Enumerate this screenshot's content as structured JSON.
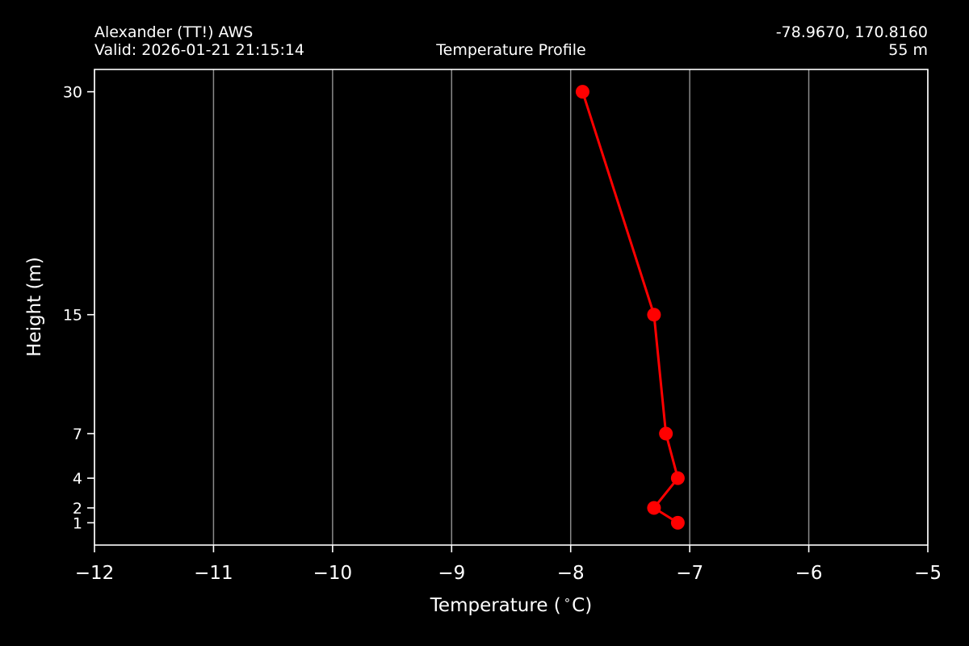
{
  "header": {
    "station_name": "Alexander (TT!) AWS",
    "valid_time": "Valid: 2026-01-21 21:15:14",
    "plot_title": "Temperature Profile",
    "coordinates": "-78.9670, 170.8160",
    "elevation": "55 m"
  },
  "colors": {
    "background": "#000000",
    "foreground": "#ffffff",
    "grid": "#8a8a8a",
    "series": "#ff0000"
  },
  "chart_data": {
    "type": "line",
    "title": "Temperature Profile",
    "xlabel": "Temperature ($^\\circ$C)",
    "ylabel": "Height (m)",
    "xlim": [
      -12,
      -5
    ],
    "ylim": [
      -0.5,
      31.5
    ],
    "x_ticks": [
      -12,
      -11,
      -10,
      -9,
      -8,
      -7,
      -6,
      -5
    ],
    "x_tick_labels": [
      "−12",
      "−11",
      "−10",
      "−9",
      "−8",
      "−7",
      "−6",
      "−5"
    ],
    "y_ticks": [
      1,
      2,
      4,
      7,
      15,
      30
    ],
    "y_tick_labels": [
      "1",
      "2",
      "4",
      "7",
      "15",
      "30"
    ],
    "grid": "vertical",
    "legend": "none",
    "series": [
      {
        "color": "#ff0000",
        "marker": "circle",
        "points": [
          {
            "height": 1,
            "temperature": -7.1
          },
          {
            "height": 2,
            "temperature": -7.3
          },
          {
            "height": 4,
            "temperature": -7.1
          },
          {
            "height": 7,
            "temperature": -7.2
          },
          {
            "height": 15,
            "temperature": -7.3
          },
          {
            "height": 30,
            "temperature": -7.9
          }
        ]
      }
    ]
  }
}
